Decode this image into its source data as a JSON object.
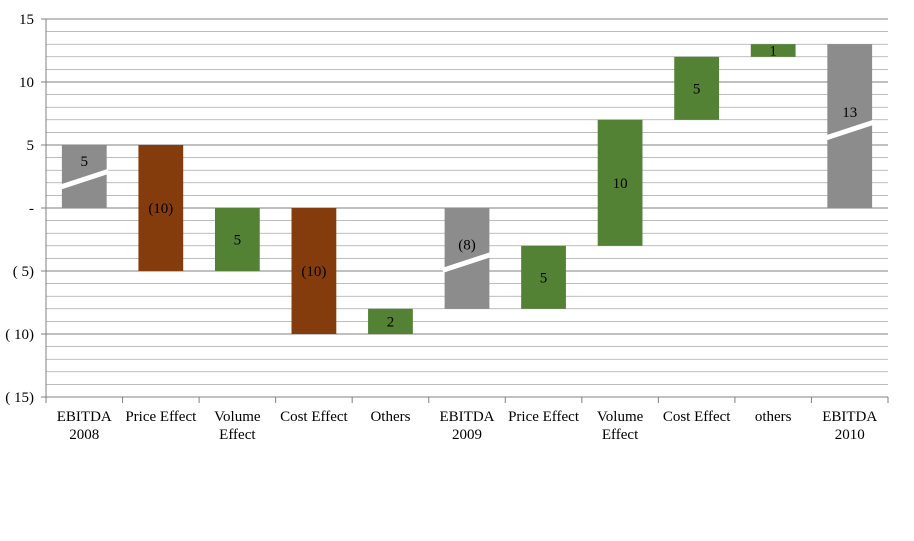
{
  "chart_data": {
    "type": "bar",
    "subtype": "waterfall",
    "title": "",
    "xlabel": "",
    "ylabel": "",
    "ylim": [
      -15,
      15
    ],
    "yticks": [
      {
        "value": 15,
        "label": "15"
      },
      {
        "value": 10,
        "label": "10"
      },
      {
        "value": 5,
        "label": "5"
      },
      {
        "value": 0,
        "label": "-"
      },
      {
        "value": -5,
        "label": "( 5)"
      },
      {
        "value": -10,
        "label": "( 10)"
      },
      {
        "value": -15,
        "label": "( 15)"
      }
    ],
    "minor_gridline_step": 1,
    "grid": true,
    "categories": [
      {
        "label": [
          "EBITDA",
          "2008"
        ],
        "low": 0,
        "high": 5,
        "kind": "total",
        "color": "#8c8c8c",
        "value_label": "5",
        "label_value": 2.6,
        "break": true
      },
      {
        "label": [
          "Price Effect"
        ],
        "low": -5,
        "high": 5,
        "kind": "negative",
        "color": "#843c0c",
        "value_label": "(10)",
        "label_value": 0,
        "break": false
      },
      {
        "label": [
          "Volume",
          "Effect"
        ],
        "low": -5,
        "high": 0,
        "kind": "positive",
        "color": "#548235",
        "value_label": "5",
        "label_value": -2.5,
        "break": false
      },
      {
        "label": [
          "Cost Effect"
        ],
        "low": -10,
        "high": 0,
        "kind": "negative",
        "color": "#843c0c",
        "value_label": "(10)",
        "label_value": -5,
        "break": false
      },
      {
        "label": [
          "Others"
        ],
        "low": -10,
        "high": -8,
        "kind": "positive",
        "color": "#548235",
        "value_label": "2",
        "label_value": -9,
        "break": false
      },
      {
        "label": [
          "EBITDA",
          "2009"
        ],
        "low": -8,
        "high": 0,
        "kind": "total",
        "color": "#8c8c8c",
        "value_label": "(8)",
        "label_value": -4,
        "break": true
      },
      {
        "label": [
          "Price Effect"
        ],
        "low": -8,
        "high": -3,
        "kind": "positive",
        "color": "#548235",
        "value_label": "5",
        "label_value": -5.5,
        "break": false
      },
      {
        "label": [
          "Volume",
          "Effect"
        ],
        "low": -3,
        "high": 7,
        "kind": "positive",
        "color": "#548235",
        "value_label": "10",
        "label_value": 2,
        "break": false
      },
      {
        "label": [
          "Cost Effect"
        ],
        "low": 7,
        "high": 12,
        "kind": "positive",
        "color": "#548235",
        "value_label": "5",
        "label_value": 9.5,
        "break": false
      },
      {
        "label": [
          "others"
        ],
        "low": 12,
        "high": 13,
        "kind": "positive",
        "color": "#548235",
        "value_label": "1",
        "label_value": 12.5,
        "break": false
      },
      {
        "label": [
          "EBITDA",
          "2010"
        ],
        "low": 0,
        "high": 13,
        "kind": "total",
        "color": "#8c8c8c",
        "value_label": "13",
        "label_value": 6.5,
        "break": true
      }
    ]
  }
}
